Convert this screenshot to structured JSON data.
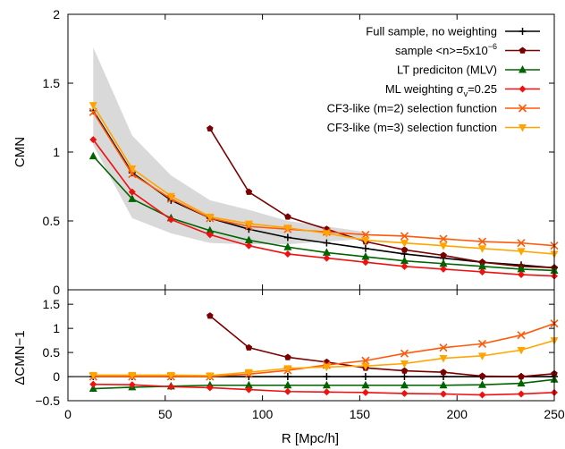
{
  "chart_data": [
    {
      "panel": "top",
      "type": "line",
      "xlabel": "",
      "ylabel": "CMN",
      "xlim": [
        0,
        250
      ],
      "ylim": [
        0,
        2
      ],
      "xticks": [
        0,
        50,
        100,
        150,
        200,
        250
      ],
      "yticks": [
        0,
        0.5,
        1,
        1.5,
        2
      ],
      "ytick_labels": [
        "0",
        "0.5",
        "1",
        "1.5",
        "2"
      ],
      "xtick_labels": [
        "",
        "",
        "",
        "",
        "",
        ""
      ],
      "grid": false,
      "legend_position": "top-right",
      "band": {
        "color": "#d9d9d9",
        "x": [
          13,
          33,
          53,
          73,
          93,
          113,
          133,
          153
        ],
        "lower": [
          1.05,
          0.52,
          0.41,
          0.34,
          0.33,
          0.33,
          0.35,
          0.37
        ],
        "upper": [
          1.76,
          1.12,
          0.83,
          0.65,
          0.58,
          0.5,
          0.46,
          0.42
        ]
      },
      "series": [
        {
          "name": "Full sample, no weighting",
          "color": "#000000",
          "marker": "plus",
          "x": [
            13,
            33,
            53,
            73,
            93,
            113,
            133,
            153,
            173,
            193,
            213,
            233,
            250
          ],
          "y": [
            1.3,
            0.85,
            0.65,
            0.52,
            0.44,
            0.38,
            0.34,
            0.3,
            0.26,
            0.23,
            0.2,
            0.18,
            0.16
          ]
        },
        {
          "name_parts": [
            "sample <n>=5x10",
            "−6"
          ],
          "color": "#7a0000",
          "marker": "pentagon",
          "x": [
            73,
            93,
            113,
            133,
            153,
            173,
            193,
            213,
            233,
            250
          ],
          "y": [
            1.17,
            0.71,
            0.53,
            0.44,
            0.35,
            0.29,
            0.25,
            0.2,
            0.17,
            0.16
          ]
        },
        {
          "name": "LT prediciton (MLV)",
          "color": "#006400",
          "marker": "triangle-up",
          "x": [
            13,
            33,
            53,
            73,
            93,
            113,
            133,
            153,
            173,
            193,
            213,
            233,
            250
          ],
          "y": [
            0.97,
            0.66,
            0.52,
            0.43,
            0.36,
            0.31,
            0.27,
            0.24,
            0.21,
            0.19,
            0.17,
            0.15,
            0.14
          ]
        },
        {
          "name_parts": [
            "ML weighting σ",
            "v",
            "=0.25"
          ],
          "color": "#ee1111",
          "marker": "diamond",
          "x": [
            13,
            33,
            53,
            73,
            93,
            113,
            133,
            153,
            173,
            193,
            213,
            233,
            250
          ],
          "y": [
            1.09,
            0.71,
            0.51,
            0.4,
            0.32,
            0.26,
            0.23,
            0.2,
            0.17,
            0.15,
            0.13,
            0.11,
            0.1
          ]
        },
        {
          "name": "CF3-like (m=2) selection function",
          "color": "#ff5a0a",
          "marker": "x",
          "x": [
            13,
            33,
            53,
            73,
            93,
            113,
            133,
            153,
            173,
            193,
            213,
            233,
            250
          ],
          "y": [
            1.29,
            0.84,
            0.66,
            0.52,
            0.46,
            0.44,
            0.42,
            0.4,
            0.39,
            0.37,
            0.35,
            0.34,
            0.32
          ]
        },
        {
          "name": "CF3-like (m=3) selection function",
          "color": "#ffa500",
          "marker": "triangle-down",
          "x": [
            13,
            33,
            53,
            73,
            93,
            113,
            133,
            153,
            173,
            193,
            213,
            233,
            250
          ],
          "y": [
            1.34,
            0.88,
            0.68,
            0.53,
            0.48,
            0.45,
            0.41,
            0.36,
            0.34,
            0.32,
            0.3,
            0.28,
            0.26
          ]
        }
      ]
    },
    {
      "panel": "bottom",
      "type": "line",
      "xlabel": "R [Mpc/h]",
      "ylabel": "ΔCMN−1",
      "xlim": [
        0,
        250
      ],
      "ylim": [
        -0.5,
        1.8
      ],
      "xticks": [
        0,
        50,
        100,
        150,
        200,
        250
      ],
      "xtick_labels": [
        "0",
        "50",
        "100",
        "150",
        "200",
        "250"
      ],
      "yticks": [
        -0.5,
        0,
        0.5,
        1,
        1.5
      ],
      "ytick_labels": [
        "−0.5",
        "0",
        "0.5",
        "1",
        "1.5"
      ],
      "reference_line": 0,
      "grid": false,
      "series": [
        {
          "color": "#000000",
          "marker": "plus",
          "x": [
            13,
            33,
            53,
            73,
            93,
            113,
            133,
            153,
            173,
            193,
            213,
            233,
            250
          ],
          "y": [
            0.0,
            0.0,
            0.0,
            0.0,
            0.0,
            0.0,
            0.0,
            0.0,
            0.0,
            0.0,
            0.0,
            0.0,
            0.0
          ]
        },
        {
          "color": "#7a0000",
          "marker": "pentagon",
          "x": [
            73,
            93,
            113,
            133,
            153,
            173,
            193,
            213,
            233,
            250
          ],
          "y": [
            1.26,
            0.6,
            0.4,
            0.3,
            0.18,
            0.12,
            0.09,
            0.01,
            0.0,
            0.06
          ]
        },
        {
          "color": "#006400",
          "marker": "triangle-up",
          "x": [
            13,
            33,
            53,
            73,
            93,
            113,
            133,
            153,
            173,
            193,
            213,
            233,
            250
          ],
          "y": [
            -0.25,
            -0.22,
            -0.2,
            -0.18,
            -0.18,
            -0.18,
            -0.18,
            -0.18,
            -0.18,
            -0.18,
            -0.17,
            -0.14,
            -0.06
          ]
        },
        {
          "color": "#ee1111",
          "marker": "diamond",
          "x": [
            13,
            33,
            53,
            73,
            93,
            113,
            133,
            153,
            173,
            193,
            213,
            233,
            250
          ],
          "y": [
            -0.16,
            -0.17,
            -0.21,
            -0.23,
            -0.27,
            -0.31,
            -0.32,
            -0.33,
            -0.35,
            -0.36,
            -0.38,
            -0.36,
            -0.33
          ]
        },
        {
          "color": "#ff5a0a",
          "marker": "x",
          "x": [
            13,
            33,
            53,
            73,
            93,
            113,
            133,
            153,
            173,
            193,
            213,
            233,
            250
          ],
          "y": [
            0.0,
            0.0,
            0.0,
            0.0,
            0.05,
            0.13,
            0.24,
            0.33,
            0.48,
            0.6,
            0.68,
            0.86,
            1.1
          ]
        },
        {
          "color": "#ffa500",
          "marker": "triangle-down",
          "x": [
            13,
            33,
            53,
            73,
            93,
            113,
            133,
            153,
            173,
            193,
            213,
            233,
            250
          ],
          "y": [
            0.03,
            0.03,
            0.03,
            0.02,
            0.09,
            0.17,
            0.2,
            0.22,
            0.27,
            0.38,
            0.43,
            0.55,
            0.75
          ]
        }
      ]
    }
  ]
}
